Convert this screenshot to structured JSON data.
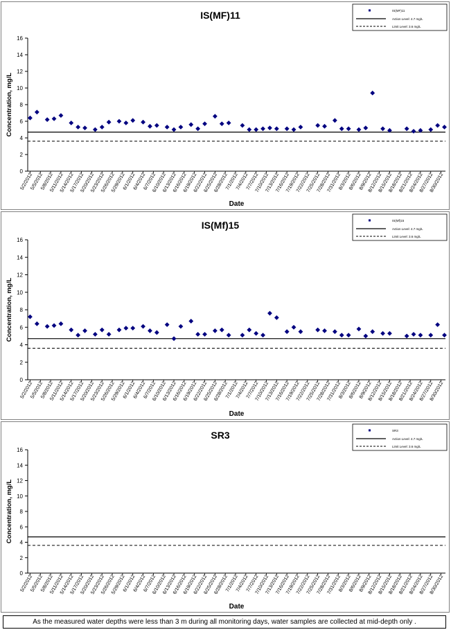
{
  "dates": [
    "5/2/2012",
    "5/5/2012",
    "5/8/2012",
    "5/11/2012",
    "5/14/2012",
    "5/17/2012",
    "5/20/2012",
    "5/23/2012",
    "5/26/2012",
    "5/29/2012",
    "6/1/2012",
    "6/4/2012",
    "6/7/2012",
    "6/10/2012",
    "6/13/2012",
    "6/16/2012",
    "6/19/2012",
    "6/22/2012",
    "6/25/2012",
    "6/28/2012",
    "7/1/2012",
    "7/4/2012",
    "7/7/2012",
    "7/10/2012",
    "7/13/2012",
    "7/16/2012",
    "7/19/2012",
    "7/22/2012",
    "7/25/2012",
    "7/28/2012",
    "7/31/2012",
    "8/3/2012",
    "8/6/2012",
    "8/9/2012",
    "8/12/2012",
    "8/15/2012",
    "8/18/2012",
    "8/21/2012",
    "8/24/2012",
    "8/27/2012",
    "8/30/2012"
  ],
  "chart_data": [
    {
      "type": "scatter",
      "title": "IS(MF)11",
      "xlabel": "Date",
      "ylabel": "Concentration, mg/L",
      "ylim": [
        0,
        16
      ],
      "yticks": [
        0,
        2,
        4,
        6,
        8,
        10,
        12,
        14,
        16
      ],
      "legend_position": "top-right",
      "legend_entries": [
        "IS(MF)11",
        "Action Level: 4.7 mg/L",
        "Limit Level: 3.6 mg/L"
      ],
      "reference_lines": [
        {
          "value": 4.7,
          "style": "solid"
        },
        {
          "value": 3.6,
          "style": "dashed"
        }
      ],
      "marker_color": "#000080",
      "points": [
        {
          "x": "5/2/2012",
          "y": 6.4
        },
        {
          "x": "5/4/2012",
          "y": 7.1
        },
        {
          "x": "5/7/2012",
          "y": 6.2
        },
        {
          "x": "5/9/2012",
          "y": 6.3
        },
        {
          "x": "5/11/2012",
          "y": 6.7
        },
        {
          "x": "5/14/2012",
          "y": 5.8
        },
        {
          "x": "5/16/2012",
          "y": 5.3
        },
        {
          "x": "5/18/2012",
          "y": 5.2
        },
        {
          "x": "5/21/2012",
          "y": 5.0
        },
        {
          "x": "5/23/2012",
          "y": 5.3
        },
        {
          "x": "5/25/2012",
          "y": 5.9
        },
        {
          "x": "5/28/2012",
          "y": 6.0
        },
        {
          "x": "5/30/2012",
          "y": 5.8
        },
        {
          "x": "6/1/2012",
          "y": 6.1
        },
        {
          "x": "6/4/2012",
          "y": 5.9
        },
        {
          "x": "6/6/2012",
          "y": 5.4
        },
        {
          "x": "6/8/2012",
          "y": 5.5
        },
        {
          "x": "6/11/2012",
          "y": 5.3
        },
        {
          "x": "6/13/2012",
          "y": 5.0
        },
        {
          "x": "6/15/2012",
          "y": 5.3
        },
        {
          "x": "6/18/2012",
          "y": 5.6
        },
        {
          "x": "6/20/2012",
          "y": 5.1
        },
        {
          "x": "6/22/2012",
          "y": 5.7
        },
        {
          "x": "6/25/2012",
          "y": 6.6
        },
        {
          "x": "6/27/2012",
          "y": 5.7
        },
        {
          "x": "6/29/2012",
          "y": 5.8
        },
        {
          "x": "7/3/2012",
          "y": 5.5
        },
        {
          "x": "7/5/2012",
          "y": 5.0
        },
        {
          "x": "7/7/2012",
          "y": 5.0
        },
        {
          "x": "7/9/2012",
          "y": 5.1
        },
        {
          "x": "7/11/2012",
          "y": 5.2
        },
        {
          "x": "7/13/2012",
          "y": 5.1
        },
        {
          "x": "7/16/2012",
          "y": 5.1
        },
        {
          "x": "7/18/2012",
          "y": 5.0
        },
        {
          "x": "7/20/2012",
          "y": 5.3
        },
        {
          "x": "7/25/2012",
          "y": 5.5
        },
        {
          "x": "7/27/2012",
          "y": 5.4
        },
        {
          "x": "7/30/2012",
          "y": 6.1
        },
        {
          "x": "8/1/2012",
          "y": 5.1
        },
        {
          "x": "8/3/2012",
          "y": 5.1
        },
        {
          "x": "8/6/2012",
          "y": 5.0
        },
        {
          "x": "8/8/2012",
          "y": 5.2
        },
        {
          "x": "8/10/2012",
          "y": 9.4
        },
        {
          "x": "8/13/2012",
          "y": 5.1
        },
        {
          "x": "8/15/2012",
          "y": 4.9
        },
        {
          "x": "8/20/2012",
          "y": 5.1
        },
        {
          "x": "8/22/2012",
          "y": 4.8
        },
        {
          "x": "8/24/2012",
          "y": 4.9
        },
        {
          "x": "8/27/2012",
          "y": 5.0
        },
        {
          "x": "8/29/2012",
          "y": 5.5
        },
        {
          "x": "8/31/2012",
          "y": 5.3
        }
      ]
    },
    {
      "type": "scatter",
      "title": "IS(Mf)15",
      "xlabel": "Date",
      "ylabel": "Concentration, mg/L",
      "ylim": [
        0,
        16
      ],
      "yticks": [
        0,
        2,
        4,
        6,
        8,
        10,
        12,
        14,
        16
      ],
      "legend_position": "top-right",
      "legend_entries": [
        "IS(Mf)15",
        "Action Level: 4.7 mg/L",
        "Limit Level: 3.6 mg/L"
      ],
      "reference_lines": [
        {
          "value": 4.7,
          "style": "solid"
        },
        {
          "value": 3.6,
          "style": "dashed"
        }
      ],
      "marker_color": "#000080",
      "points": [
        {
          "x": "5/2/2012",
          "y": 7.2
        },
        {
          "x": "5/4/2012",
          "y": 6.4
        },
        {
          "x": "5/7/2012",
          "y": 6.1
        },
        {
          "x": "5/9/2012",
          "y": 6.2
        },
        {
          "x": "5/11/2012",
          "y": 6.4
        },
        {
          "x": "5/14/2012",
          "y": 5.7
        },
        {
          "x": "5/16/2012",
          "y": 5.1
        },
        {
          "x": "5/18/2012",
          "y": 5.6
        },
        {
          "x": "5/21/2012",
          "y": 5.2
        },
        {
          "x": "5/23/2012",
          "y": 5.7
        },
        {
          "x": "5/25/2012",
          "y": 5.2
        },
        {
          "x": "5/28/2012",
          "y": 5.7
        },
        {
          "x": "5/30/2012",
          "y": 5.9
        },
        {
          "x": "6/1/2012",
          "y": 5.9
        },
        {
          "x": "6/4/2012",
          "y": 6.1
        },
        {
          "x": "6/6/2012",
          "y": 5.6
        },
        {
          "x": "6/8/2012",
          "y": 5.4
        },
        {
          "x": "6/11/2012",
          "y": 6.3
        },
        {
          "x": "6/13/2012",
          "y": 4.7
        },
        {
          "x": "6/15/2012",
          "y": 6.1
        },
        {
          "x": "6/18/2012",
          "y": 6.7
        },
        {
          "x": "6/20/2012",
          "y": 5.2
        },
        {
          "x": "6/22/2012",
          "y": 5.2
        },
        {
          "x": "6/25/2012",
          "y": 5.6
        },
        {
          "x": "6/27/2012",
          "y": 5.7
        },
        {
          "x": "6/29/2012",
          "y": 5.1
        },
        {
          "x": "7/3/2012",
          "y": 5.1
        },
        {
          "x": "7/5/2012",
          "y": 5.7
        },
        {
          "x": "7/7/2012",
          "y": 5.3
        },
        {
          "x": "7/9/2012",
          "y": 5.1
        },
        {
          "x": "7/11/2012",
          "y": 7.6
        },
        {
          "x": "7/13/2012",
          "y": 7.1
        },
        {
          "x": "7/16/2012",
          "y": 5.5
        },
        {
          "x": "7/18/2012",
          "y": 6.0
        },
        {
          "x": "7/20/2012",
          "y": 5.5
        },
        {
          "x": "7/25/2012",
          "y": 5.7
        },
        {
          "x": "7/27/2012",
          "y": 5.6
        },
        {
          "x": "7/30/2012",
          "y": 5.5
        },
        {
          "x": "8/1/2012",
          "y": 5.1
        },
        {
          "x": "8/3/2012",
          "y": 5.1
        },
        {
          "x": "8/6/2012",
          "y": 5.8
        },
        {
          "x": "8/8/2012",
          "y": 5.0
        },
        {
          "x": "8/10/2012",
          "y": 5.5
        },
        {
          "x": "8/13/2012",
          "y": 5.3
        },
        {
          "x": "8/15/2012",
          "y": 5.3
        },
        {
          "x": "8/20/2012",
          "y": 5.0
        },
        {
          "x": "8/22/2012",
          "y": 5.2
        },
        {
          "x": "8/24/2012",
          "y": 5.1
        },
        {
          "x": "8/27/2012",
          "y": 5.1
        },
        {
          "x": "8/29/2012",
          "y": 6.3
        },
        {
          "x": "8/31/2012",
          "y": 5.1
        }
      ]
    },
    {
      "type": "scatter",
      "title": "SR3",
      "xlabel": "Date",
      "ylabel": "Concentration, mg/L",
      "ylim": [
        0,
        16
      ],
      "yticks": [
        0,
        2,
        4,
        6,
        8,
        10,
        12,
        14,
        16
      ],
      "legend_position": "top-right",
      "legend_entries": [
        "SR3",
        "Action Level: 4.7 mg/L",
        "Limit Level: 3.6 mg/L"
      ],
      "reference_lines": [
        {
          "value": 4.7,
          "style": "solid"
        },
        {
          "value": 3.6,
          "style": "dashed"
        }
      ],
      "marker_color": "#000080",
      "points": []
    }
  ],
  "footnote": "As the measured water depths were less than 3 m during all monitoring days, water samples are collected  at mid-depth only ."
}
